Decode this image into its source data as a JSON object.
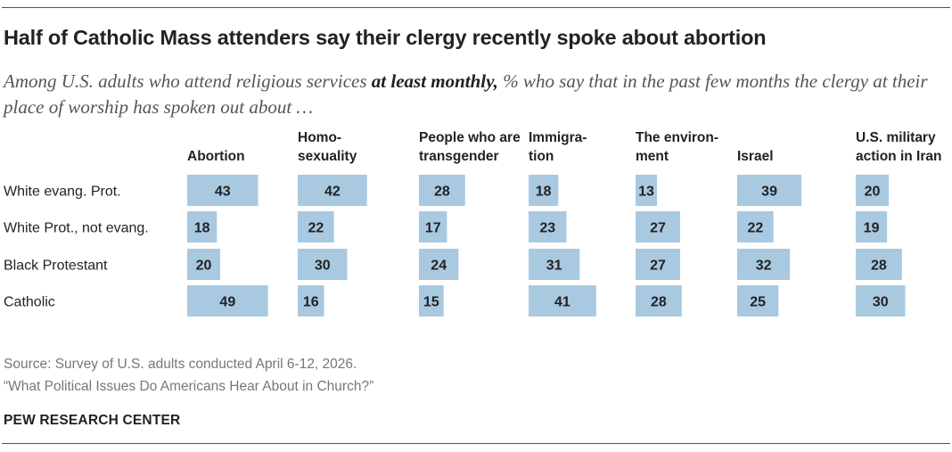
{
  "header": {
    "title": "Half of Catholic Mass attenders say their clergy recently spoke about abortion",
    "subtitle_pre": "Among U.S. adults who attend religious services ",
    "subtitle_bold": "at least monthly,",
    "subtitle_post": " % who say that in the past few months the clergy at their place of worship has spoken out about …"
  },
  "chart_data": {
    "type": "bar",
    "categories": [
      "White evang. Prot.",
      "White Prot., not evang.",
      "Black Protestant",
      "Catholic"
    ],
    "series": [
      {
        "name": "Abortion",
        "header_lines": [
          "Abortion"
        ],
        "values": [
          43,
          18,
          20,
          49
        ]
      },
      {
        "name": "Homosexuality",
        "header_lines": [
          "Homo-",
          "sexuality"
        ],
        "values": [
          42,
          22,
          30,
          16
        ]
      },
      {
        "name": "People who are transgender",
        "header_lines": [
          "People who are",
          "transgender"
        ],
        "values": [
          28,
          17,
          24,
          15
        ]
      },
      {
        "name": "Immigration",
        "header_lines": [
          "Immigra-",
          "tion"
        ],
        "values": [
          18,
          23,
          31,
          41
        ]
      },
      {
        "name": "The environment",
        "header_lines": [
          "The environ-",
          "ment"
        ],
        "values": [
          13,
          27,
          27,
          28
        ]
      },
      {
        "name": "Israel",
        "header_lines": [
          "Israel"
        ],
        "values": [
          39,
          22,
          32,
          25
        ]
      },
      {
        "name": "U.S. military action in Iran",
        "header_lines": [
          "U.S. military",
          "action in Iran"
        ],
        "values": [
          20,
          19,
          28,
          30
        ]
      }
    ],
    "bar_color": "#a9c9e1",
    "label_color": "#222222"
  },
  "footer": {
    "source": "Source: Survey of U.S. adults conducted April 6-12, 2026.",
    "report": "“What Political Issues Do Americans Hear About in Church?”",
    "org": "PEW RESEARCH CENTER"
  }
}
